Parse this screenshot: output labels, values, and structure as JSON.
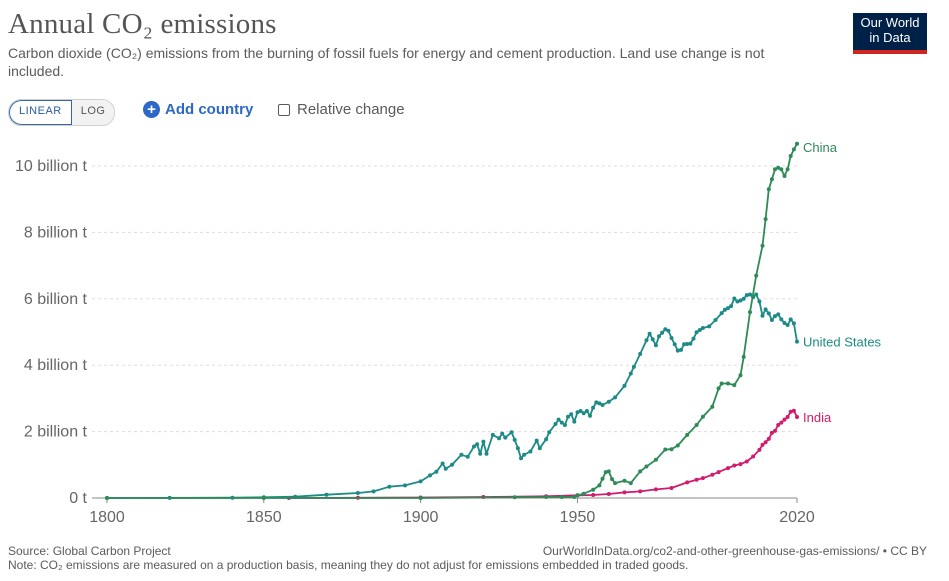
{
  "header": {
    "title": "Annual CO₂ emissions",
    "subtitle": "Carbon dioxide (CO₂) emissions from the burning of fossil fuels for energy and cement production. Land use change is not included."
  },
  "logo": {
    "line1": "Our World",
    "line2": "in Data"
  },
  "controls": {
    "linear_label": "LINEAR",
    "log_label": "LOG",
    "add_country_label": "Add country",
    "add_icon": "plus-circle-icon",
    "relative_change_label": "Relative change"
  },
  "footer": {
    "source": "Source: Global Carbon Project",
    "url": "OurWorldInData.org/co2-and-other-greenhouse-gas-emissions/ • CC BY",
    "note": "Note: CO₂ emissions are measured on a production basis, meaning they do not adjust for emissions embedded in traded goods."
  },
  "colors": {
    "china": "#2e8b57",
    "united_states": "#1d8b85",
    "india": "#d01c6e",
    "gridline": "#dddddd",
    "axis": "#888888"
  },
  "chart_data": {
    "type": "line",
    "title": "Annual CO₂ emissions",
    "xlabel": "",
    "ylabel": "",
    "xlim": [
      1800,
      2020
    ],
    "ylim": [
      0,
      10.8
    ],
    "unit": "billion t",
    "x_ticks": [
      1800,
      1850,
      1900,
      1950,
      2020
    ],
    "y_ticks": [
      0,
      2,
      4,
      6,
      8,
      10
    ],
    "y_tick_labels": [
      "0 t",
      "2 billion t",
      "4 billion t",
      "6 billion t",
      "8 billion t",
      "10 billion t"
    ],
    "grid": true,
    "series": [
      {
        "name": "China",
        "color": "#2e8b57",
        "points": [
          [
            1800,
            0
          ],
          [
            1850,
            0
          ],
          [
            1900,
            0.001
          ],
          [
            1930,
            0.02
          ],
          [
            1940,
            0.03
          ],
          [
            1945,
            0.03
          ],
          [
            1949,
            0.03
          ],
          [
            1950,
            0.08
          ],
          [
            1952,
            0.13
          ],
          [
            1955,
            0.25
          ],
          [
            1957,
            0.38
          ],
          [
            1958,
            0.58
          ],
          [
            1959,
            0.78
          ],
          [
            1960,
            0.8
          ],
          [
            1961,
            0.57
          ],
          [
            1962,
            0.45
          ],
          [
            1965,
            0.52
          ],
          [
            1967,
            0.45
          ],
          [
            1970,
            0.8
          ],
          [
            1972,
            0.95
          ],
          [
            1975,
            1.15
          ],
          [
            1978,
            1.46
          ],
          [
            1980,
            1.47
          ],
          [
            1982,
            1.58
          ],
          [
            1985,
            1.9
          ],
          [
            1988,
            2.2
          ],
          [
            1990,
            2.45
          ],
          [
            1993,
            2.75
          ],
          [
            1995,
            3.3
          ],
          [
            1996,
            3.45
          ],
          [
            1998,
            3.45
          ],
          [
            2000,
            3.4
          ],
          [
            2002,
            3.7
          ],
          [
            2003,
            4.25
          ],
          [
            2005,
            5.6
          ],
          [
            2007,
            6.7
          ],
          [
            2009,
            7.6
          ],
          [
            2010,
            8.4
          ],
          [
            2011,
            9.3
          ],
          [
            2012,
            9.6
          ],
          [
            2013,
            9.9
          ],
          [
            2014,
            9.95
          ],
          [
            2015,
            9.9
          ],
          [
            2016,
            9.7
          ],
          [
            2017,
            9.9
          ],
          [
            2018,
            10.3
          ],
          [
            2019,
            10.5
          ],
          [
            2020,
            10.67
          ]
        ]
      },
      {
        "name": "United States",
        "color": "#1d8b85",
        "points": [
          [
            1800,
            0.0003
          ],
          [
            1820,
            0.002
          ],
          [
            1840,
            0.01
          ],
          [
            1850,
            0.02
          ],
          [
            1860,
            0.04
          ],
          [
            1870,
            0.1
          ],
          [
            1880,
            0.15
          ],
          [
            1885,
            0.2
          ],
          [
            1890,
            0.34
          ],
          [
            1895,
            0.38
          ],
          [
            1900,
            0.5
          ],
          [
            1903,
            0.68
          ],
          [
            1905,
            0.79
          ],
          [
            1907,
            1.04
          ],
          [
            1908,
            0.88
          ],
          [
            1910,
            1.0
          ],
          [
            1913,
            1.3
          ],
          [
            1915,
            1.24
          ],
          [
            1917,
            1.55
          ],
          [
            1918,
            1.62
          ],
          [
            1919,
            1.33
          ],
          [
            1920,
            1.7
          ],
          [
            1921,
            1.33
          ],
          [
            1923,
            1.9
          ],
          [
            1925,
            1.8
          ],
          [
            1926,
            1.94
          ],
          [
            1927,
            1.82
          ],
          [
            1929,
            1.98
          ],
          [
            1930,
            1.75
          ],
          [
            1931,
            1.5
          ],
          [
            1932,
            1.2
          ],
          [
            1933,
            1.3
          ],
          [
            1935,
            1.4
          ],
          [
            1937,
            1.73
          ],
          [
            1938,
            1.5
          ],
          [
            1940,
            1.77
          ],
          [
            1941,
            1.98
          ],
          [
            1943,
            2.23
          ],
          [
            1944,
            2.36
          ],
          [
            1945,
            2.27
          ],
          [
            1946,
            2.2
          ],
          [
            1947,
            2.45
          ],
          [
            1948,
            2.52
          ],
          [
            1949,
            2.3
          ],
          [
            1950,
            2.58
          ],
          [
            1951,
            2.62
          ],
          [
            1952,
            2.55
          ],
          [
            1953,
            2.62
          ],
          [
            1954,
            2.48
          ],
          [
            1955,
            2.72
          ],
          [
            1956,
            2.88
          ],
          [
            1957,
            2.85
          ],
          [
            1958,
            2.8
          ],
          [
            1960,
            2.9
          ],
          [
            1962,
            3.03
          ],
          [
            1965,
            3.38
          ],
          [
            1967,
            3.75
          ],
          [
            1968,
            3.95
          ],
          [
            1970,
            4.34
          ],
          [
            1972,
            4.75
          ],
          [
            1973,
            4.95
          ],
          [
            1974,
            4.78
          ],
          [
            1975,
            4.6
          ],
          [
            1976,
            4.87
          ],
          [
            1977,
            4.98
          ],
          [
            1978,
            5.08
          ],
          [
            1979,
            5.04
          ],
          [
            1980,
            4.82
          ],
          [
            1981,
            4.63
          ],
          [
            1982,
            4.44
          ],
          [
            1983,
            4.46
          ],
          [
            1984,
            4.63
          ],
          [
            1985,
            4.64
          ],
          [
            1986,
            4.65
          ],
          [
            1987,
            4.8
          ],
          [
            1988,
            4.99
          ],
          [
            1989,
            5.06
          ],
          [
            1990,
            5.12
          ],
          [
            1992,
            5.17
          ],
          [
            1994,
            5.36
          ],
          [
            1996,
            5.57
          ],
          [
            1997,
            5.67
          ],
          [
            1998,
            5.72
          ],
          [
            1999,
            5.78
          ],
          [
            2000,
            6.01
          ],
          [
            2001,
            5.92
          ],
          [
            2002,
            5.95
          ],
          [
            2003,
            6.0
          ],
          [
            2004,
            6.11
          ],
          [
            2005,
            6.13
          ],
          [
            2006,
            6.05
          ],
          [
            2007,
            6.13
          ],
          [
            2008,
            5.92
          ],
          [
            2009,
            5.49
          ],
          [
            2010,
            5.68
          ],
          [
            2011,
            5.56
          ],
          [
            2012,
            5.36
          ],
          [
            2013,
            5.48
          ],
          [
            2014,
            5.53
          ],
          [
            2015,
            5.38
          ],
          [
            2016,
            5.27
          ],
          [
            2017,
            5.21
          ],
          [
            2018,
            5.38
          ],
          [
            2019,
            5.26
          ],
          [
            2020,
            4.71
          ]
        ]
      },
      {
        "name": "India",
        "color": "#d01c6e",
        "points": [
          [
            1858,
            0.0003
          ],
          [
            1880,
            0.005
          ],
          [
            1900,
            0.015
          ],
          [
            1920,
            0.03
          ],
          [
            1940,
            0.05
          ],
          [
            1950,
            0.08
          ],
          [
            1955,
            0.09
          ],
          [
            1960,
            0.12
          ],
          [
            1965,
            0.17
          ],
          [
            1970,
            0.2
          ],
          [
            1975,
            0.26
          ],
          [
            1980,
            0.3
          ],
          [
            1985,
            0.47
          ],
          [
            1988,
            0.55
          ],
          [
            1990,
            0.6
          ],
          [
            1993,
            0.7
          ],
          [
            1995,
            0.78
          ],
          [
            1998,
            0.9
          ],
          [
            2000,
            0.98
          ],
          [
            2002,
            1.02
          ],
          [
            2004,
            1.1
          ],
          [
            2006,
            1.25
          ],
          [
            2008,
            1.45
          ],
          [
            2009,
            1.6
          ],
          [
            2010,
            1.68
          ],
          [
            2011,
            1.78
          ],
          [
            2012,
            1.96
          ],
          [
            2013,
            2.02
          ],
          [
            2014,
            2.2
          ],
          [
            2015,
            2.27
          ],
          [
            2016,
            2.36
          ],
          [
            2017,
            2.44
          ],
          [
            2018,
            2.6
          ],
          [
            2019,
            2.63
          ],
          [
            2020,
            2.44
          ]
        ]
      }
    ]
  }
}
